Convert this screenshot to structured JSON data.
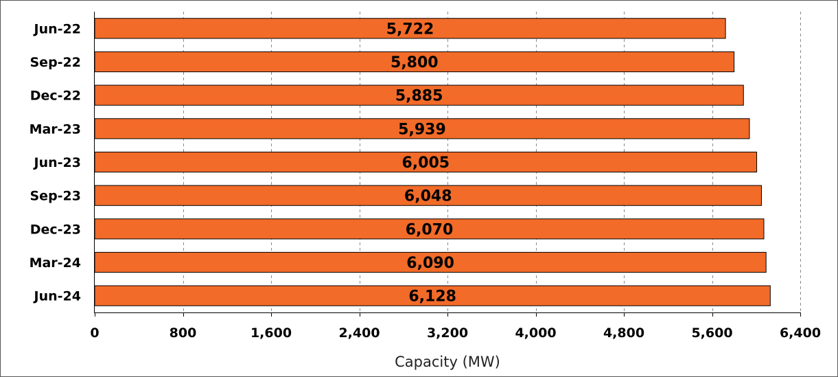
{
  "chart_data": {
    "type": "bar",
    "orientation": "horizontal",
    "categories": [
      "Jun-22",
      "Sep-22",
      "Dec-22",
      "Mar-23",
      "Jun-23",
      "Sep-23",
      "Dec-23",
      "Mar-24",
      "Jun-24"
    ],
    "values": [
      5722,
      5800,
      5885,
      5939,
      6005,
      6048,
      6070,
      6090,
      6128
    ],
    "value_labels": [
      "5,722",
      "5,800",
      "5,885",
      "5,939",
      "6,005",
      "6,048",
      "6,070",
      "6,090",
      "6,128"
    ],
    "xlabel": "Capacity (MW)",
    "ylabel": "",
    "title": "",
    "xlim": [
      0,
      6400
    ],
    "x_ticks": [
      0,
      800,
      1600,
      2400,
      3200,
      4000,
      4800,
      5600,
      6400
    ],
    "x_tick_labels": [
      "0",
      "800",
      "1,600",
      "2,400",
      "3,200",
      "4,000",
      "4,800",
      "5,600",
      "6,400"
    ],
    "grid": "vertical dashed",
    "legend": "none",
    "bar_color": "#f26b29",
    "bar_edge_color": "#000000",
    "grid_color": "#888888"
  }
}
